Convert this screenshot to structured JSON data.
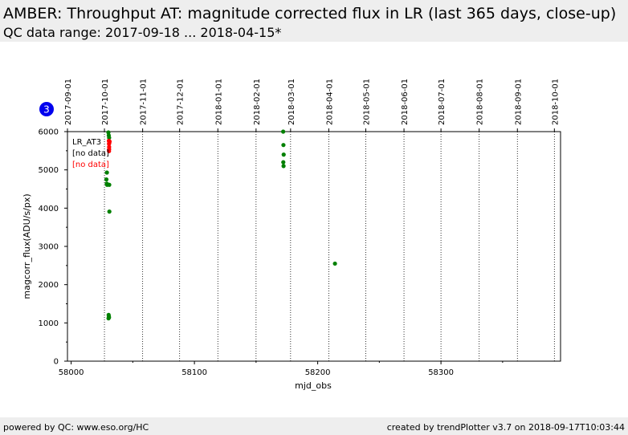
{
  "header": {
    "title": "AMBER: Throughput AT: magnitude corrected flux in LR (last 365 days, close-up)",
    "subtitle": "QC data range: 2017-09-18 ... 2018-04-15*"
  },
  "footer": {
    "left": "powered by QC: www.eso.org/HC",
    "right": "created by trendPlotter v3.7 on 2018-09-17T10:03:44"
  },
  "badge": {
    "label": "3",
    "color": "#0000ee"
  },
  "chart_data": {
    "type": "scatter",
    "xlabel": "mjd_obs",
    "ylabel": "magcorr_flux(ADU/s/px)",
    "xlim": [
      57997,
      58397
    ],
    "ylim": [
      0,
      6000
    ],
    "xticks": [
      58000,
      58100,
      58200,
      58300
    ],
    "yticks": [
      0,
      1000,
      2000,
      3000,
      4000,
      5000,
      6000
    ],
    "top_axis": {
      "ticks": [
        {
          "x": 57997,
          "label": "2017-09-01"
        },
        {
          "x": 58027,
          "label": "2017-10-01"
        },
        {
          "x": 58058,
          "label": "2017-11-01"
        },
        {
          "x": 58088,
          "label": "2017-12-01"
        },
        {
          "x": 58119,
          "label": "2018-01-01"
        },
        {
          "x": 58150,
          "label": "2018-02-01"
        },
        {
          "x": 58178,
          "label": "2018-03-01"
        },
        {
          "x": 58209,
          "label": "2018-04-01"
        },
        {
          "x": 58239,
          "label": "2018-05-01"
        },
        {
          "x": 58270,
          "label": "2018-06-01"
        },
        {
          "x": 58300,
          "label": "2018-07-01"
        },
        {
          "x": 58331,
          "label": "2018-08-01"
        },
        {
          "x": 58362,
          "label": "2018-09-01"
        },
        {
          "x": 58392,
          "label": "2018-10-01"
        }
      ]
    },
    "legend": {
      "position": "top-left",
      "entries": [
        {
          "label": "LR_AT3",
          "color": "#000000"
        },
        {
          "label": "[no data]",
          "color": "#000000"
        },
        {
          "label": "[no data]",
          "color": "#ff0000"
        }
      ]
    },
    "series": [
      {
        "color": "#008000",
        "points": [
          [
            58030.2,
            5980
          ],
          [
            58030.5,
            5900
          ],
          [
            58030.8,
            5840
          ],
          [
            58029.0,
            4930
          ],
          [
            58028.6,
            4750
          ],
          [
            58028.9,
            4640
          ],
          [
            58029.2,
            4610
          ],
          [
            58030.9,
            4610
          ],
          [
            58031.0,
            3910
          ],
          [
            58030.4,
            1210
          ],
          [
            58030.6,
            1170
          ],
          [
            58030.3,
            1120
          ],
          [
            58030.7,
            1140
          ],
          [
            58172.0,
            6000
          ],
          [
            58172.2,
            5650
          ],
          [
            58172.4,
            5400
          ],
          [
            58172.1,
            5200
          ],
          [
            58172.3,
            5100
          ],
          [
            58214.0,
            2550
          ]
        ]
      },
      {
        "color": "#ff0000",
        "points": [
          [
            58030.6,
            5760
          ],
          [
            58031.2,
            5740
          ],
          [
            58030.9,
            5700
          ],
          [
            58030.7,
            5680
          ],
          [
            58030.8,
            5600
          ],
          [
            58030.8,
            5540
          ],
          [
            58030.7,
            5490
          ]
        ]
      }
    ]
  }
}
